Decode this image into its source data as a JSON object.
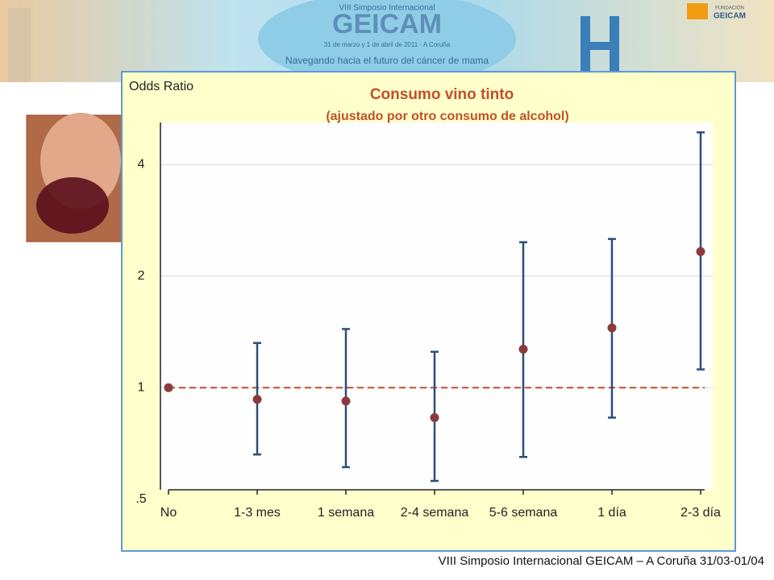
{
  "header": {
    "event": "VIII Simposio Internacional",
    "brand": "GEICAM",
    "dates": "31 de marzo y 1 de abril de 2011 · A Coruña",
    "motto": "Navegando hacia el futuro del cáncer de mama",
    "foundation_top": "FUNDACIÓN",
    "foundation": "GEICAM"
  },
  "chart_data": {
    "type": "errorbar",
    "title": "Consumo vino tinto",
    "subtitle": "(ajustado por otro consumo de alcohol)",
    "y_label": "Odds Ratio",
    "categories": [
      "No",
      "1-3 mes",
      "1 semana",
      "2-4 semana",
      "5-6 semana",
      "1 día",
      "2-3 día"
    ],
    "values": [
      1.0,
      0.93,
      0.92,
      0.83,
      1.27,
      1.45,
      2.33
    ],
    "lower": [
      null,
      0.66,
      0.61,
      0.56,
      0.65,
      0.83,
      1.12
    ],
    "upper": [
      null,
      1.32,
      1.44,
      1.25,
      2.47,
      2.52,
      4.89
    ],
    "point_color": "#8e3a3c",
    "bar_color": "#2b4f7a",
    "reference_line": 1,
    "reference_color": "#c0502a",
    "log_scale": true,
    "grid": true,
    "ylim": [
      0.53,
      5.2
    ],
    "yticks": [
      {
        "value": 0.5,
        "label": ".5"
      },
      1,
      2,
      4
    ]
  },
  "footer": "VIII Simposio Internacional GEICAM – A Coruña 31/03-01/04"
}
